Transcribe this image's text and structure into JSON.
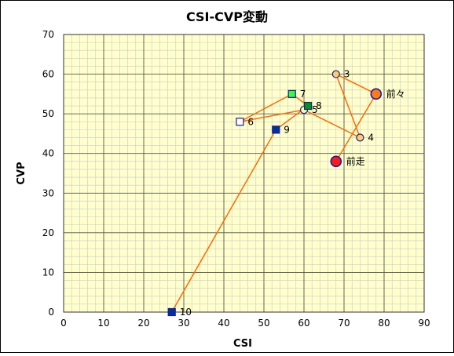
{
  "chart_data": {
    "type": "scatter",
    "title": "CSI-CVP変動",
    "xlabel": "CSI",
    "ylabel": "CVP",
    "xlim": [
      0,
      90
    ],
    "ylim": [
      0,
      70
    ],
    "x_ticks": [
      0,
      10,
      20,
      30,
      40,
      50,
      60,
      70,
      80,
      90
    ],
    "y_ticks": [
      0,
      10,
      20,
      30,
      40,
      50,
      60,
      70
    ],
    "grid": "major and minor",
    "plot_background": "#ffffcc",
    "line_color": "#ff6a00",
    "path_order": [
      "前走",
      "前々",
      "3",
      "4",
      "5",
      "6",
      "7",
      "8",
      "9",
      "10"
    ],
    "points": [
      {
        "label": "前走",
        "x": 68,
        "y": 38,
        "marker": "circle-large",
        "fill": "#ff1a1a",
        "stroke": "#1a1aa0"
      },
      {
        "label": "前々",
        "x": 78,
        "y": 55,
        "marker": "circle-large",
        "fill": "#ff7a1a",
        "stroke": "#1a1aa0"
      },
      {
        "label": "3",
        "x": 68,
        "y": 60,
        "marker": "circle",
        "fill": "#ffd060",
        "stroke": "#1a1aa0"
      },
      {
        "label": "4",
        "x": 74,
        "y": 44,
        "marker": "circle",
        "fill": "#ffd060",
        "stroke": "#1a1aa0"
      },
      {
        "label": "5",
        "x": 60,
        "y": 51,
        "marker": "circle",
        "fill": "#ffff99",
        "stroke": "#1a1aa0"
      },
      {
        "label": "6",
        "x": 44,
        "y": 48,
        "marker": "square",
        "fill": "#ffffff",
        "stroke": "#1a1aa0"
      },
      {
        "label": "7",
        "x": 57,
        "y": 55,
        "marker": "square",
        "fill": "#33ff33",
        "stroke": "#1a1aa0"
      },
      {
        "label": "8",
        "x": 61,
        "y": 52,
        "marker": "square",
        "fill": "#009900",
        "stroke": "#1a1aa0"
      },
      {
        "label": "9",
        "x": 53,
        "y": 46,
        "marker": "square",
        "fill": "#003399",
        "stroke": "#1a1aa0"
      },
      {
        "label": "10",
        "x": 27,
        "y": 0,
        "marker": "square",
        "fill": "#003399",
        "stroke": "#1a1aa0"
      }
    ]
  }
}
